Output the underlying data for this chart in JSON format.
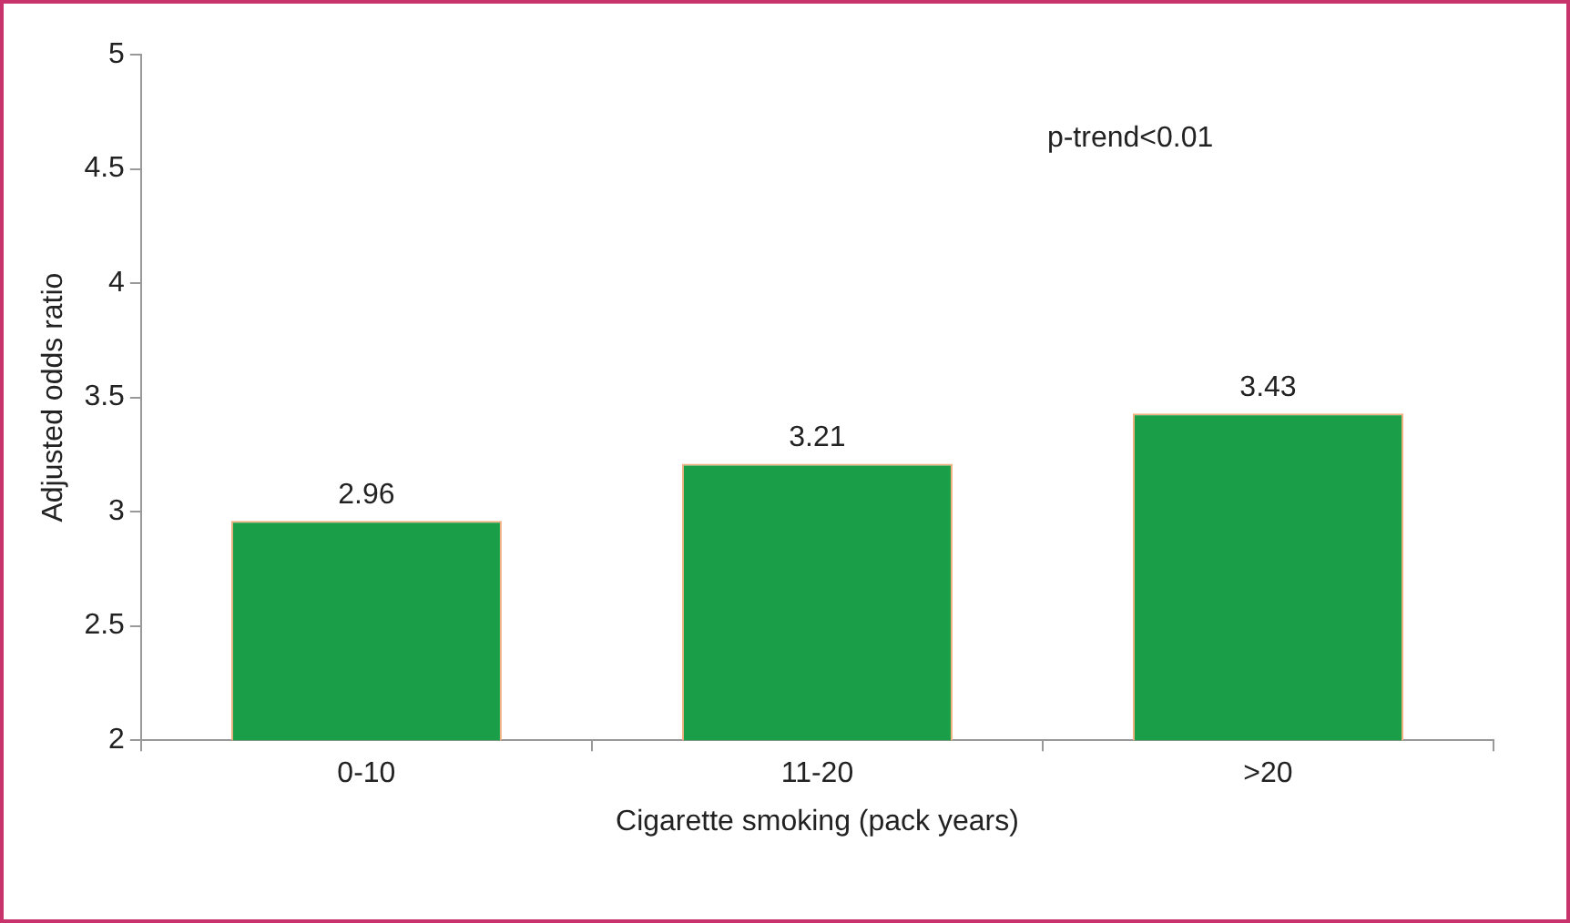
{
  "chart_data": {
    "type": "bar",
    "categories": [
      "0-10",
      "11-20",
      ">20"
    ],
    "values": [
      2.96,
      3.21,
      3.43
    ],
    "color": "#1a9e48",
    "xlabel": "Cigarette smoking (pack years)",
    "ylabel": "Adjusted odds ratio",
    "ylim": [
      2,
      5
    ],
    "yticks": [
      2,
      2.5,
      3,
      3.5,
      4,
      4.5,
      5
    ],
    "data_labels": true,
    "annotations": [
      "p-trend<0.01"
    ]
  }
}
